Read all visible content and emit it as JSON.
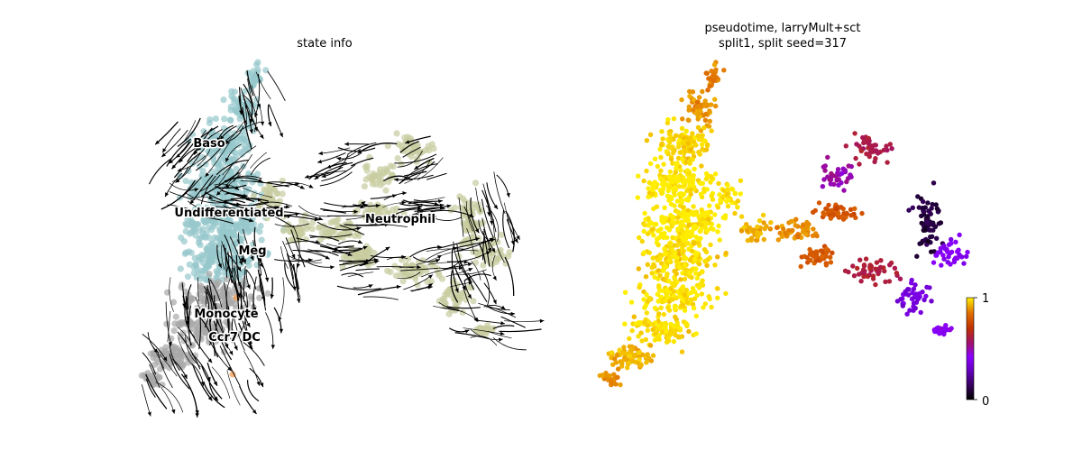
{
  "chart_data": [
    {
      "type": "scatter",
      "title": "state info",
      "streamlines": true,
      "legend": "on data",
      "grid": false,
      "axes_visible": false,
      "colors": {
        "Baso": "#96c8cc",
        "Undifferentiated": "#96c8cc",
        "Meg": "#96c8cc",
        "Neutrophil": "#c8cc9e",
        "Monocyte": "#a8a8a8",
        "Ccr7 DC": "#a8a8a8",
        "Other": "#f4a460"
      },
      "clusters": [
        "Baso",
        "Undifferentiated",
        "Meg",
        "Neutrophil",
        "Monocyte",
        "Ccr7 DC"
      ]
    },
    {
      "type": "scatter",
      "title_lines": [
        "pseudotime, larryMult+sct",
        "split1, split seed=317"
      ],
      "colormap": "gnuplot",
      "colorbar": {
        "ticks": [
          "0",
          "1"
        ],
        "range": [
          0,
          1
        ]
      },
      "grid": false,
      "axes_visible": false
    }
  ]
}
